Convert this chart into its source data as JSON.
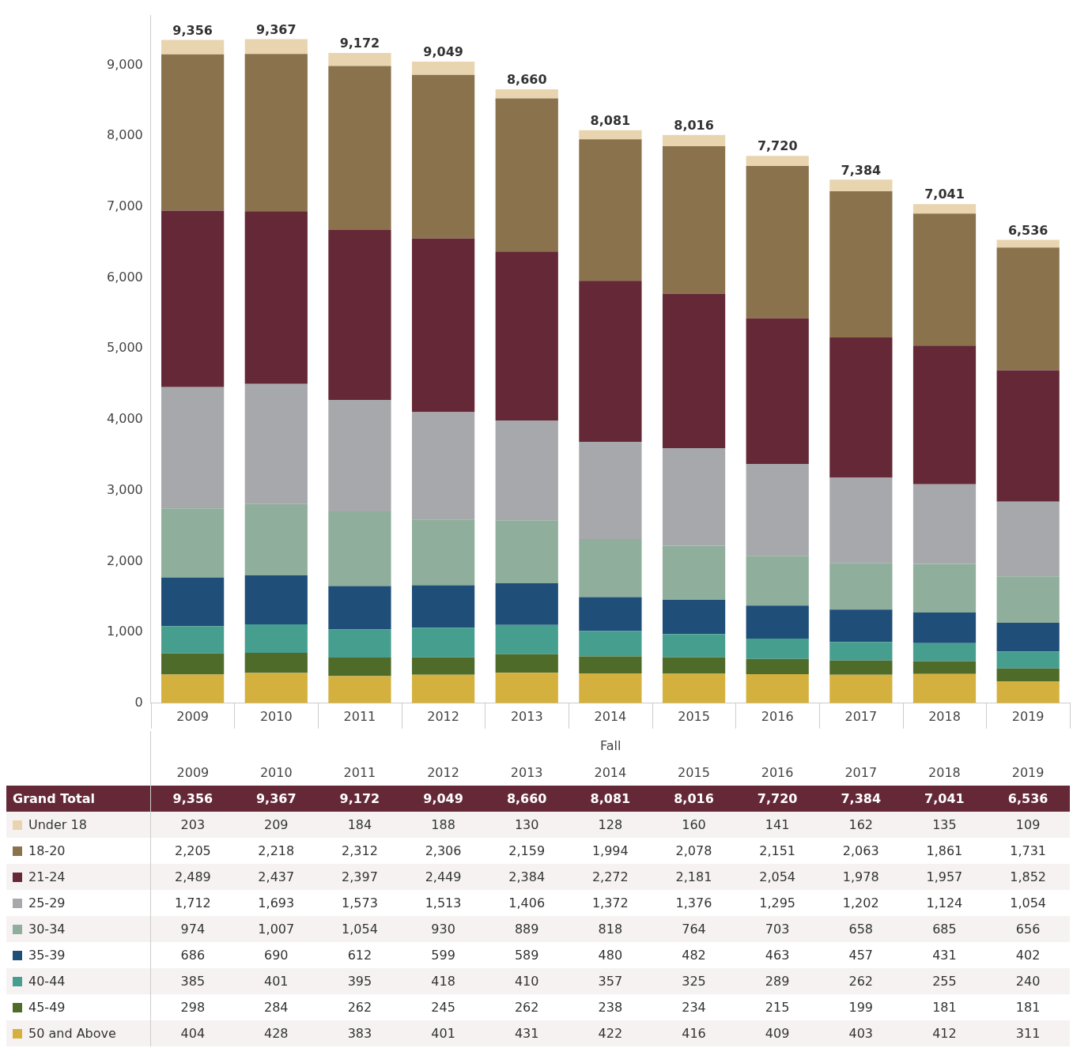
{
  "chart_data": {
    "type": "bar",
    "stacked": true,
    "xlabel": "Fall",
    "categories": [
      "2009",
      "2010",
      "2011",
      "2012",
      "2013",
      "2014",
      "2015",
      "2016",
      "2017",
      "2018",
      "2019"
    ],
    "series": [
      {
        "name": "50 and Above",
        "color": "#d4b13f",
        "values": [
          404,
          428,
          383,
          401,
          431,
          422,
          416,
          409,
          403,
          412,
          311
        ],
        "value_labels": [
          "404",
          "428",
          "383",
          "401",
          "431",
          "422",
          "416",
          "409",
          "403",
          "412",
          "311"
        ]
      },
      {
        "name": "45-49",
        "color": "#4e6b2a",
        "values": [
          298,
          284,
          262,
          245,
          262,
          238,
          234,
          215,
          199,
          181,
          181
        ],
        "value_labels": [
          "298",
          "284",
          "262",
          "245",
          "262",
          "238",
          "234",
          "215",
          "199",
          "181",
          "181"
        ]
      },
      {
        "name": "40-44",
        "color": "#469e8f",
        "values": [
          385,
          401,
          395,
          418,
          410,
          357,
          325,
          289,
          262,
          255,
          240
        ],
        "value_labels": [
          "385",
          "401",
          "395",
          "418",
          "410",
          "357",
          "325",
          "289",
          "262",
          "255",
          "240"
        ]
      },
      {
        "name": "35-39",
        "color": "#1f4e79",
        "values": [
          686,
          690,
          612,
          599,
          589,
          480,
          482,
          463,
          457,
          431,
          402
        ],
        "value_labels": [
          "686",
          "690",
          "612",
          "599",
          "589",
          "480",
          "482",
          "463",
          "457",
          "431",
          "402"
        ]
      },
      {
        "name": "30-34",
        "color": "#8fae9c",
        "values": [
          974,
          1007,
          1054,
          930,
          889,
          818,
          764,
          703,
          658,
          685,
          656
        ],
        "value_labels": [
          "974",
          "1,007",
          "1,054",
          "930",
          "889",
          "818",
          "764",
          "703",
          "658",
          "685",
          "656"
        ]
      },
      {
        "name": "25-29",
        "color": "#a7a8ab",
        "values": [
          1712,
          1693,
          1573,
          1513,
          1406,
          1372,
          1376,
          1295,
          1202,
          1124,
          1054
        ],
        "value_labels": [
          "1,712",
          "1,693",
          "1,573",
          "1,513",
          "1,406",
          "1,372",
          "1,376",
          "1,295",
          "1,202",
          "1,124",
          "1,054"
        ]
      },
      {
        "name": "21-24",
        "color": "#652837",
        "values": [
          2489,
          2437,
          2397,
          2449,
          2384,
          2272,
          2181,
          2054,
          1978,
          1957,
          1852
        ],
        "value_labels": [
          "2,489",
          "2,437",
          "2,397",
          "2,449",
          "2,384",
          "2,272",
          "2,181",
          "2,054",
          "1,978",
          "1,957",
          "1,852"
        ]
      },
      {
        "name": "18-20",
        "color": "#8a724c",
        "values": [
          2205,
          2218,
          2312,
          2306,
          2159,
          1994,
          2078,
          2151,
          2063,
          1861,
          1731
        ],
        "value_labels": [
          "2,205",
          "2,218",
          "2,312",
          "2,306",
          "2,159",
          "1,994",
          "2,078",
          "2,151",
          "2,063",
          "1,861",
          "1,731"
        ]
      },
      {
        "name": "Under 18",
        "color": "#e8d5b0",
        "values": [
          203,
          209,
          184,
          188,
          130,
          128,
          160,
          141,
          162,
          135,
          109
        ],
        "value_labels": [
          "203",
          "209",
          "184",
          "188",
          "130",
          "128",
          "160",
          "141",
          "162",
          "135",
          "109"
        ]
      }
    ],
    "totals": [
      "9,356",
      "9,367",
      "9,172",
      "9,049",
      "8,660",
      "8,081",
      "8,016",
      "7,720",
      "7,384",
      "7,041",
      "6,536"
    ],
    "annotations": [
      "Grand Total"
    ],
    "ylim": [
      0,
      9700
    ],
    "yticks": [
      0,
      {
        "value": 1000,
        "label": "1,000"
      },
      {
        "value": 2000,
        "label": "2,000"
      },
      {
        "value": 3000,
        "label": "3,000"
      },
      {
        "value": 4000,
        "label": "4,000"
      },
      {
        "value": 5000,
        "label": "5,000"
      },
      {
        "value": 6000,
        "label": "6,000"
      },
      {
        "value": 7000,
        "label": "7,000"
      },
      {
        "value": 8000,
        "label": "8,000"
      },
      {
        "value": 9000,
        "label": "9,000"
      }
    ],
    "grid": false,
    "legend": "bottom"
  }
}
